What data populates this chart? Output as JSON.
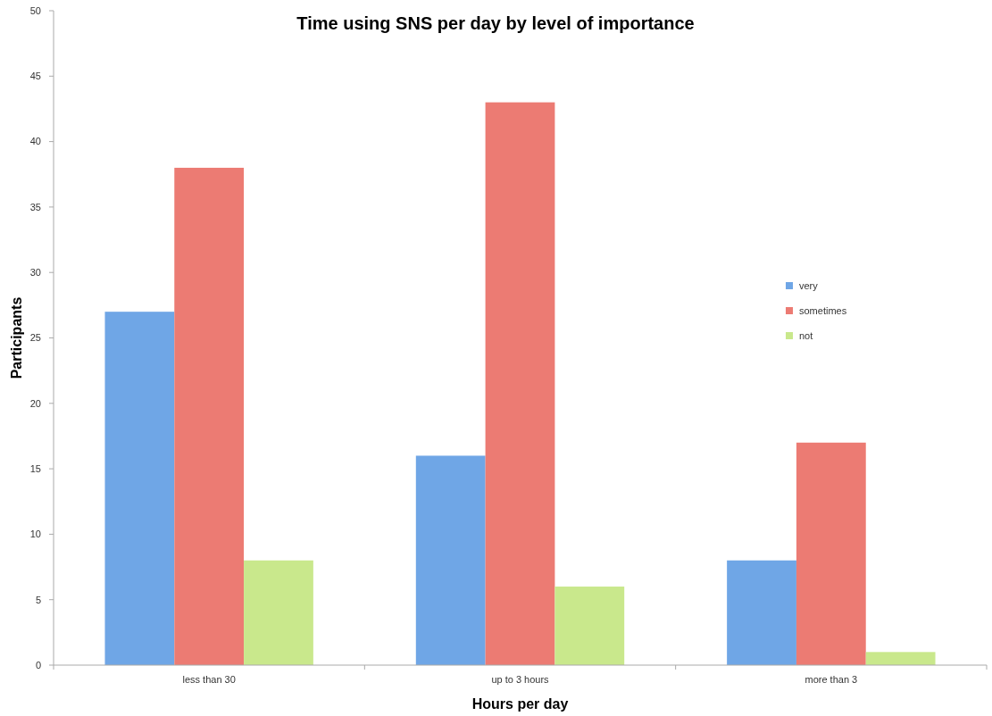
{
  "chart_data": {
    "type": "bar",
    "title": "Time using SNS per day by level of importance",
    "xlabel": "Hours per day",
    "ylabel": "Participants",
    "categories": [
      "less than 30",
      "up to 3 hours",
      "more than 3"
    ],
    "series": [
      {
        "name": "very",
        "color": "#6fa6e6",
        "values": [
          27,
          16,
          8
        ]
      },
      {
        "name": "sometimes",
        "color": "#ec7b73",
        "values": [
          38,
          43,
          17
        ]
      },
      {
        "name": "not",
        "color": "#c9e88c",
        "values": [
          8,
          6,
          1
        ]
      }
    ],
    "ylim": [
      0,
      50
    ],
    "yticks": [
      0,
      5,
      10,
      15,
      20,
      25,
      30,
      35,
      40,
      45,
      50
    ],
    "grid": false,
    "legend": "right"
  }
}
